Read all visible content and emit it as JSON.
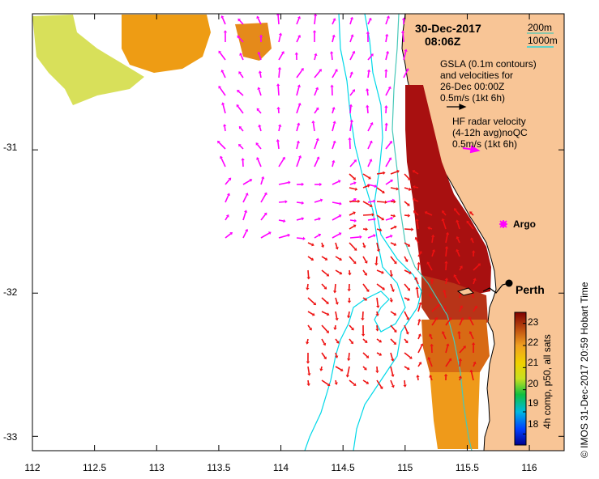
{
  "title": {
    "date": "30-Dec-2017",
    "time": "08:06Z"
  },
  "legend": {
    "depth_200": "200m",
    "depth_1000": "1000m",
    "gsla_lines": [
      "GSLA (0.1m contours)",
      "and velocities for",
      "26-Dec 00:00Z",
      "0.5m/s (1kt 6h)"
    ],
    "hf_lines": [
      "HF radar velocity",
      "(4-12h avg)noQC",
      "0.5m/s (1kt 6h)"
    ]
  },
  "places": {
    "argo": "Argo",
    "perth": "Perth"
  },
  "axes": {
    "x_ticks": [
      "112",
      "112.5",
      "113",
      "113.5",
      "114",
      "114.5",
      "115",
      "115.5",
      "116"
    ],
    "y_ticks": [
      "-31",
      "-32",
      "-33"
    ],
    "x_range": [
      112.0,
      116.28
    ],
    "y_range": [
      -33.1,
      -30.05
    ]
  },
  "colorbar": {
    "label": "4h comp, p50, all sats",
    "ticks": [
      "18",
      "19",
      "20",
      "21",
      "22",
      "23"
    ],
    "range": [
      17.5,
      23.5
    ]
  },
  "credit": "© IMOS 31-Dec-2017 20:59 Hobart Time",
  "colors": {
    "land": "#f8c596",
    "contour_cyan": "#00e0e0",
    "contour_teal": "#48c8b8",
    "gsla_vector": "#ff00ff",
    "hf_vector": "#ee1111"
  }
}
